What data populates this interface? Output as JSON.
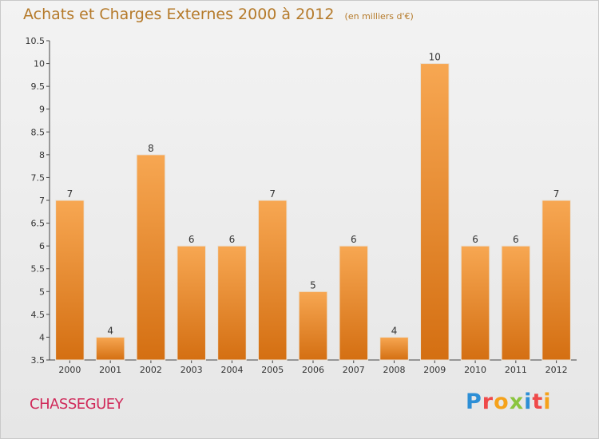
{
  "title": "Achats et Charges Externes 2000 à 2012",
  "title_unit": "(en milliers d'€)",
  "place_name": "CHASSEGUEY",
  "brand": {
    "letters": [
      "P",
      "r",
      "o",
      "x",
      "i",
      "t",
      "i"
    ],
    "colors": [
      "#2d8fd6",
      "#ef4a4a",
      "#f5a21b",
      "#8bc53f",
      "#2d8fd6",
      "#ef4a4a",
      "#f5a21b"
    ]
  },
  "colors": {
    "bar_light": "#f7a752",
    "bar_dark": "#d46f12",
    "title": "#b57a2a",
    "place": "#d02a5a"
  },
  "chart_data": {
    "type": "bar",
    "categories": [
      "2000",
      "2001",
      "2002",
      "2003",
      "2004",
      "2005",
      "2006",
      "2007",
      "2008",
      "2009",
      "2010",
      "2011",
      "2012"
    ],
    "values": [
      7,
      4,
      8,
      6,
      6,
      7,
      5,
      6,
      4,
      10,
      6,
      6,
      7
    ],
    "ylim": [
      3.5,
      10.5
    ],
    "yticks": [
      "3.5",
      "4",
      "4.5",
      "5",
      "5.5",
      "6",
      "6.5",
      "7",
      "7.5",
      "8",
      "8.5",
      "9",
      "9.5",
      "10",
      "10.5"
    ],
    "grid": false,
    "legend": "none"
  }
}
